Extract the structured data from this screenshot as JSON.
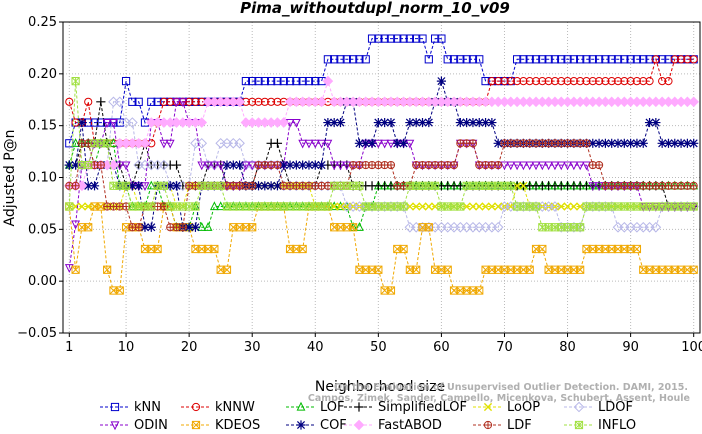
{
  "chart_data": {
    "type": "line",
    "title": "Pima_withoutdupl_norm_10_v09",
    "xlabel": "Neighborhood size",
    "ylabel": "Adjusted P@n",
    "xlim": [
      0,
      101
    ],
    "ylim": [
      -0.05,
      0.25
    ],
    "xticks": [
      1,
      10,
      20,
      30,
      40,
      50,
      60,
      70,
      80,
      90,
      100
    ],
    "yticks": [
      -0.05,
      0.0,
      0.05,
      0.1,
      0.15,
      0.2,
      0.25
    ],
    "ytick_labels": [
      "−0.05",
      "0.00",
      "0.05",
      "0.10",
      "0.15",
      "0.20",
      "0.25"
    ],
    "grid": true,
    "legend_position": "bottom",
    "watermark": [
      "Campos, Zimek, Sander, Campello, Micenkova, Schubert, Assent, Houle",
      "On the Evaluation of Unsupervised Outlier Detection. DAMI, 2015."
    ],
    "series": [
      {
        "name": "kNN",
        "color": "#0000cc",
        "marker": "square",
        "segments": [
          [
            1,
            0.133
          ],
          [
            2,
            0.153
          ],
          [
            3,
            0.153
          ],
          [
            9,
            0.153
          ],
          [
            10,
            0.193
          ],
          [
            11,
            0.173
          ],
          [
            13,
            0.153
          ],
          [
            14,
            0.173
          ],
          [
            29,
            0.193
          ],
          [
            42,
            0.214
          ],
          [
            49,
            0.234
          ],
          [
            58,
            0.214
          ],
          [
            59,
            0.234
          ],
          [
            61,
            0.214
          ],
          [
            67,
            0.193
          ],
          [
            72,
            0.214
          ],
          [
            100,
            0.214
          ]
        ]
      },
      {
        "name": "kNNW",
        "color": "#dd0000",
        "marker": "circle",
        "segments": [
          [
            1,
            0.173
          ],
          [
            2,
            0.153
          ],
          [
            4,
            0.173
          ],
          [
            5,
            0.133
          ],
          [
            13,
            0.133
          ],
          [
            15,
            0.153
          ],
          [
            16,
            0.173
          ],
          [
            40,
            0.173
          ],
          [
            41,
            0.173
          ],
          [
            67,
            0.173
          ],
          [
            68,
            0.193
          ],
          [
            93,
            0.193
          ],
          [
            94,
            0.214
          ],
          [
            95,
            0.193
          ],
          [
            96,
            0.193
          ],
          [
            97,
            0.214
          ],
          [
            100,
            0.214
          ]
        ]
      },
      {
        "name": "LOF",
        "color": "#00bb00",
        "marker": "triangle-up",
        "segments": [
          [
            1,
            0.112
          ],
          [
            2,
            0.133
          ],
          [
            5,
            0.112
          ],
          [
            6,
            0.133
          ],
          [
            9,
            0.092
          ],
          [
            11,
            0.072
          ],
          [
            14,
            0.092
          ],
          [
            16,
            0.072
          ],
          [
            18,
            0.052
          ],
          [
            21,
            0.072
          ],
          [
            22,
            0.052
          ],
          [
            24,
            0.072
          ],
          [
            45,
            0.072
          ],
          [
            46,
            0.052
          ],
          [
            48,
            0.072
          ],
          [
            50,
            0.092
          ],
          [
            100,
            0.092
          ]
        ]
      },
      {
        "name": "SimplifiedLOF",
        "color": "#000000",
        "marker": "plus",
        "segments": [
          [
            1,
            0.112
          ],
          [
            3,
            0.133
          ],
          [
            6,
            0.173
          ],
          [
            7,
            0.133
          ],
          [
            8,
            0.112
          ],
          [
            10,
            0.092
          ],
          [
            12,
            0.112
          ],
          [
            13,
            0.133
          ],
          [
            14,
            0.112
          ],
          [
            17,
            0.112
          ],
          [
            19,
            0.092
          ],
          [
            23,
            0.112
          ],
          [
            26,
            0.092
          ],
          [
            31,
            0.112
          ],
          [
            33,
            0.133
          ],
          [
            35,
            0.112
          ],
          [
            36,
            0.092
          ],
          [
            40,
            0.092
          ],
          [
            41,
            0.112
          ],
          [
            45,
            0.112
          ],
          [
            46,
            0.092
          ],
          [
            95,
            0.092
          ],
          [
            96,
            0.072
          ],
          [
            100,
            0.072
          ]
        ]
      },
      {
        "name": "LoOP",
        "color": "#e0e000",
        "marker": "x",
        "segments": [
          [
            1,
            0.072
          ],
          [
            4,
            0.072
          ],
          [
            10,
            0.092
          ],
          [
            12,
            0.072
          ],
          [
            15,
            0.092
          ],
          [
            18,
            0.072
          ],
          [
            20,
            0.092
          ],
          [
            38,
            0.092
          ],
          [
            40,
            0.072
          ],
          [
            70,
            0.072
          ],
          [
            72,
            0.092
          ],
          [
            74,
            0.072
          ],
          [
            100,
            0.072
          ]
        ]
      },
      {
        "name": "LDOF",
        "color": "#b8b8e8",
        "marker": "diamond",
        "segments": [
          [
            1,
            0.092
          ],
          [
            3,
            0.112
          ],
          [
            8,
            0.173
          ],
          [
            10,
            0.153
          ],
          [
            12,
            0.112
          ],
          [
            17,
            0.092
          ],
          [
            21,
            0.133
          ],
          [
            23,
            0.112
          ],
          [
            25,
            0.133
          ],
          [
            29,
            0.112
          ],
          [
            35,
            0.092
          ],
          [
            45,
            0.072
          ],
          [
            55,
            0.052
          ],
          [
            65,
            0.052
          ],
          [
            70,
            0.072
          ],
          [
            79,
            0.052
          ],
          [
            83,
            0.072
          ],
          [
            88,
            0.052
          ],
          [
            95,
            0.072
          ],
          [
            100,
            0.072
          ]
        ]
      },
      {
        "name": "ODIN",
        "color": "#8800cc",
        "marker": "triangle-down",
        "segments": [
          [
            1,
            0.013
          ],
          [
            2,
            0.055
          ],
          [
            3,
            0.112
          ],
          [
            5,
            0.133
          ],
          [
            7,
            0.153
          ],
          [
            9,
            0.112
          ],
          [
            11,
            0.092
          ],
          [
            14,
            0.153
          ],
          [
            16,
            0.133
          ],
          [
            18,
            0.173
          ],
          [
            20,
            0.153
          ],
          [
            22,
            0.112
          ],
          [
            26,
            0.092
          ],
          [
            29,
            0.112
          ],
          [
            33,
            0.112
          ],
          [
            36,
            0.153
          ],
          [
            38,
            0.133
          ],
          [
            43,
            0.112
          ],
          [
            48,
            0.133
          ],
          [
            53,
            0.133
          ],
          [
            56,
            0.112
          ],
          [
            61,
            0.112
          ],
          [
            63,
            0.133
          ],
          [
            66,
            0.112
          ],
          [
            78,
            0.112
          ],
          [
            84,
            0.092
          ],
          [
            92,
            0.072
          ],
          [
            100,
            0.072
          ]
        ]
      },
      {
        "name": "KDEOS",
        "color": "#f0a800",
        "marker": "square-x",
        "segments": [
          [
            1,
            0.072
          ],
          [
            2,
            0.011
          ],
          [
            3,
            0.052
          ],
          [
            5,
            0.072
          ],
          [
            7,
            0.011
          ],
          [
            8,
            -0.009
          ],
          [
            10,
            0.052
          ],
          [
            13,
            0.031
          ],
          [
            16,
            0.072
          ],
          [
            18,
            0.052
          ],
          [
            21,
            0.031
          ],
          [
            25,
            0.011
          ],
          [
            27,
            0.052
          ],
          [
            31,
            0.072
          ],
          [
            36,
            0.031
          ],
          [
            39,
            0.072
          ],
          [
            43,
            0.052
          ],
          [
            47,
            0.011
          ],
          [
            51,
            -0.009
          ],
          [
            53,
            0.031
          ],
          [
            55,
            0.011
          ],
          [
            57,
            0.052
          ],
          [
            59,
            0.011
          ],
          [
            62,
            -0.009
          ],
          [
            67,
            0.011
          ],
          [
            75,
            0.031
          ],
          [
            77,
            0.011
          ],
          [
            83,
            0.031
          ],
          [
            92,
            0.011
          ],
          [
            100,
            0.011
          ]
        ]
      },
      {
        "name": "COF",
        "color": "#000080",
        "marker": "asterisk",
        "segments": [
          [
            1,
            0.112
          ],
          [
            3,
            0.153
          ],
          [
            4,
            0.092
          ],
          [
            6,
            0.112
          ],
          [
            9,
            0.092
          ],
          [
            13,
            0.052
          ],
          [
            15,
            0.092
          ],
          [
            19,
            0.052
          ],
          [
            22,
            0.092
          ],
          [
            26,
            0.112
          ],
          [
            29,
            0.092
          ],
          [
            35,
            0.112
          ],
          [
            42,
            0.153
          ],
          [
            45,
            0.173
          ],
          [
            47,
            0.133
          ],
          [
            50,
            0.153
          ],
          [
            53,
            0.133
          ],
          [
            55,
            0.153
          ],
          [
            59,
            0.173
          ],
          [
            60,
            0.193
          ],
          [
            61,
            0.173
          ],
          [
            63,
            0.153
          ],
          [
            69,
            0.133
          ],
          [
            71,
            0.133
          ],
          [
            92,
            0.133
          ],
          [
            93,
            0.153
          ],
          [
            95,
            0.133
          ],
          [
            100,
            0.133
          ]
        ]
      },
      {
        "name": "FastABOD",
        "color": "#ffaaff",
        "marker": "diamond-filled",
        "segments": [
          [
            1,
            0.092
          ],
          [
            4,
            0.112
          ],
          [
            9,
            0.133
          ],
          [
            14,
            0.153
          ],
          [
            21,
            0.153
          ],
          [
            23,
            0.173
          ],
          [
            29,
            0.153
          ],
          [
            33,
            0.153
          ],
          [
            36,
            0.173
          ],
          [
            42,
            0.193
          ],
          [
            43,
            0.173
          ],
          [
            58,
            0.173
          ],
          [
            60,
            0.173
          ],
          [
            100,
            0.173
          ]
        ]
      },
      {
        "name": "LDF",
        "color": "#b03020",
        "marker": "circle-plus",
        "segments": [
          [
            1,
            0.092
          ],
          [
            3,
            0.133
          ],
          [
            5,
            0.112
          ],
          [
            7,
            0.072
          ],
          [
            11,
            0.052
          ],
          [
            13,
            0.072
          ],
          [
            17,
            0.052
          ],
          [
            20,
            0.092
          ],
          [
            26,
            0.092
          ],
          [
            31,
            0.112
          ],
          [
            35,
            0.092
          ],
          [
            43,
            0.092
          ],
          [
            46,
            0.112
          ],
          [
            48,
            0.112
          ],
          [
            53,
            0.092
          ],
          [
            56,
            0.112
          ],
          [
            61,
            0.112
          ],
          [
            63,
            0.133
          ],
          [
            66,
            0.112
          ],
          [
            70,
            0.133
          ],
          [
            84,
            0.112
          ],
          [
            86,
            0.092
          ],
          [
            100,
            0.092
          ]
        ]
      },
      {
        "name": "INFLO",
        "color": "#a0e040",
        "marker": "x-box",
        "segments": [
          [
            1,
            0.072
          ],
          [
            2,
            0.193
          ],
          [
            3,
            0.112
          ],
          [
            5,
            0.133
          ],
          [
            8,
            0.092
          ],
          [
            11,
            0.072
          ],
          [
            15,
            0.092
          ],
          [
            17,
            0.072
          ],
          [
            22,
            0.092
          ],
          [
            26,
            0.072
          ],
          [
            31,
            0.072
          ],
          [
            40,
            0.072
          ],
          [
            43,
            0.092
          ],
          [
            48,
            0.072
          ],
          [
            55,
            0.092
          ],
          [
            60,
            0.072
          ],
          [
            64,
            0.092
          ],
          [
            72,
            0.072
          ],
          [
            76,
            0.052
          ],
          [
            83,
            0.072
          ],
          [
            86,
            0.072
          ],
          [
            100,
            0.072
          ]
        ]
      }
    ]
  }
}
